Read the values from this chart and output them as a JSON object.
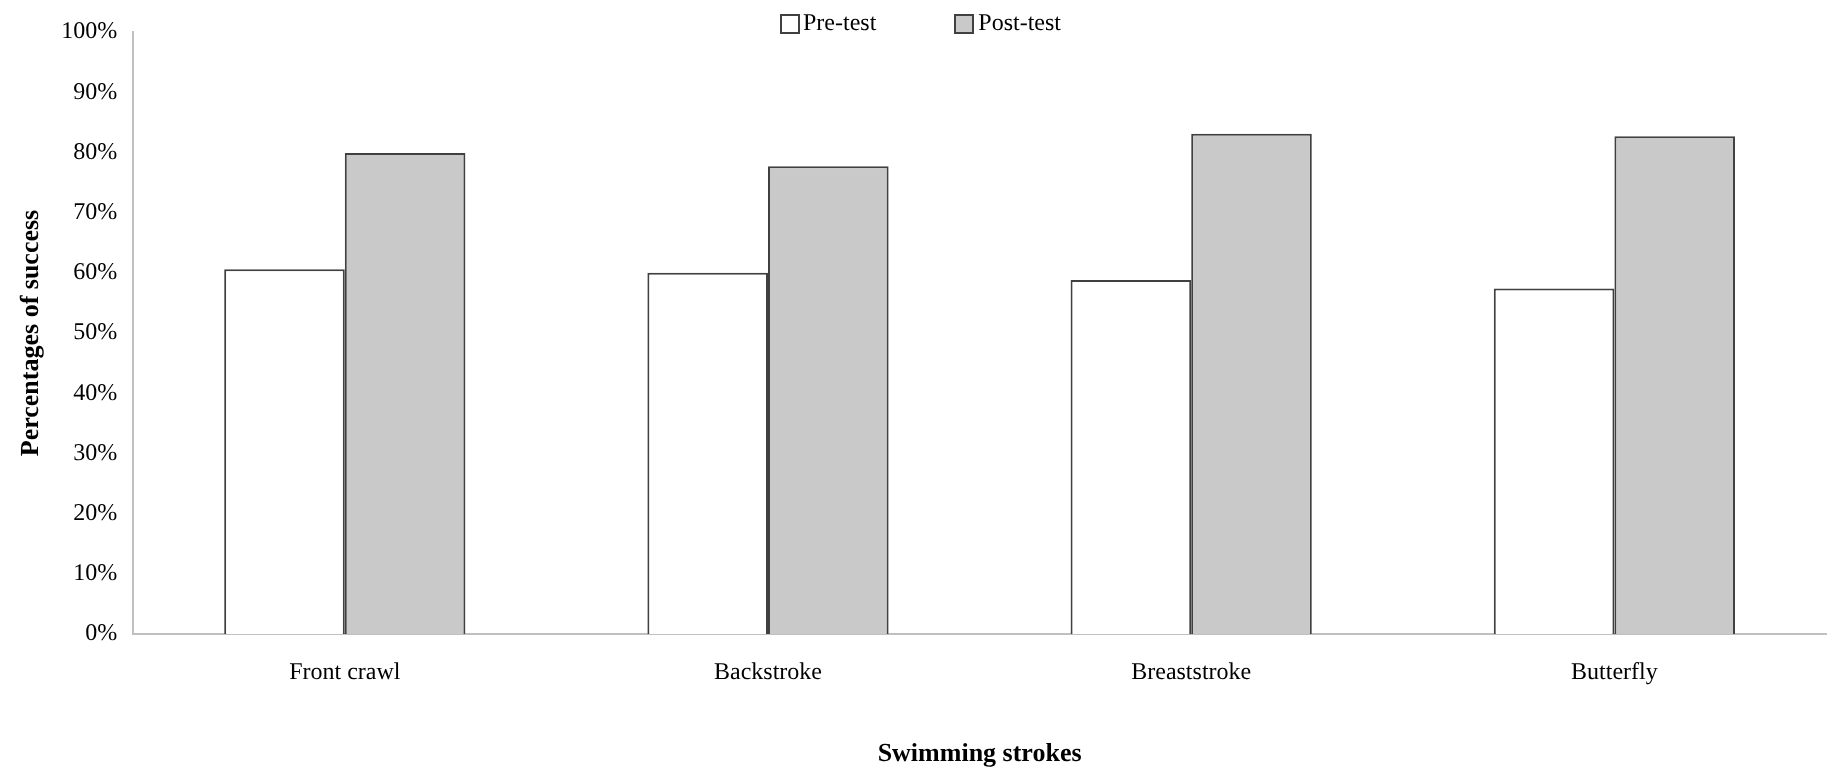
{
  "chart_data": {
    "type": "bar",
    "xlabel": "Swimming strokes",
    "ylabel": "Percentages of success",
    "categories": [
      "Front crawl",
      "Backstroke",
      "Breaststroke",
      "Butterfly"
    ],
    "series": [
      {
        "name": "Pre-test",
        "color": "#ffffff",
        "values": [
          60.6,
          60.0,
          58.8,
          57.4
        ]
      },
      {
        "name": "Post-test",
        "color": "#c9c9c9",
        "values": [
          79.9,
          77.7,
          83.1,
          82.7
        ]
      }
    ],
    "ylim": [
      0,
      100
    ],
    "yticks": [
      {
        "value": 0,
        "label": "0%"
      },
      {
        "value": 10,
        "label": "10%"
      },
      {
        "value": 20,
        "label": "20%"
      },
      {
        "value": 30,
        "label": "30%"
      },
      {
        "value": 40,
        "label": "40%"
      },
      {
        "value": 50,
        "label": "50%"
      },
      {
        "value": 60,
        "label": "60%"
      },
      {
        "value": 70,
        "label": "70%"
      },
      {
        "value": 80,
        "label": "80%"
      },
      {
        "value": 90,
        "label": "90%"
      },
      {
        "value": 100,
        "label": "100%"
      }
    ],
    "grid": false,
    "legend": "top"
  }
}
